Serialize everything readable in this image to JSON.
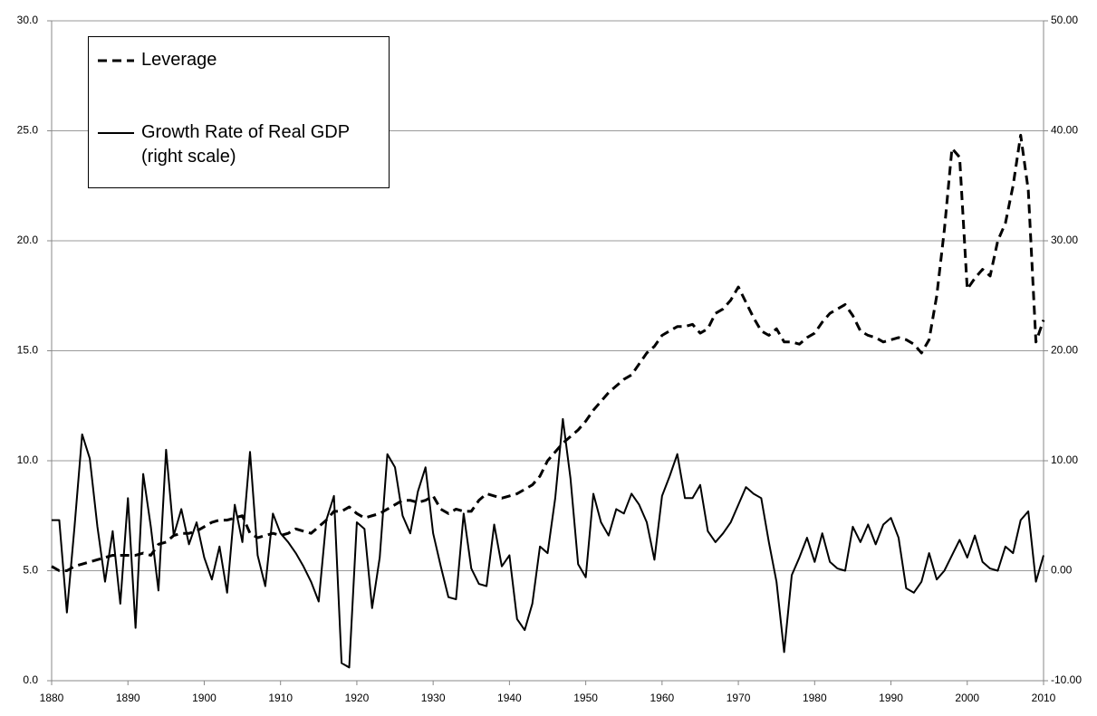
{
  "chart_data": {
    "type": "line",
    "x": [
      1880,
      1881,
      1882,
      1883,
      1884,
      1885,
      1886,
      1887,
      1888,
      1889,
      1890,
      1891,
      1892,
      1893,
      1894,
      1895,
      1896,
      1897,
      1898,
      1899,
      1900,
      1901,
      1902,
      1903,
      1904,
      1905,
      1906,
      1907,
      1908,
      1909,
      1910,
      1911,
      1912,
      1913,
      1914,
      1915,
      1916,
      1917,
      1918,
      1919,
      1920,
      1921,
      1922,
      1923,
      1924,
      1925,
      1926,
      1927,
      1928,
      1929,
      1930,
      1931,
      1932,
      1933,
      1934,
      1935,
      1936,
      1937,
      1938,
      1939,
      1940,
      1941,
      1942,
      1943,
      1944,
      1945,
      1946,
      1947,
      1948,
      1949,
      1950,
      1951,
      1952,
      1953,
      1954,
      1955,
      1956,
      1957,
      1958,
      1959,
      1960,
      1961,
      1962,
      1963,
      1964,
      1965,
      1966,
      1967,
      1968,
      1969,
      1970,
      1971,
      1972,
      1973,
      1974,
      1975,
      1976,
      1977,
      1978,
      1979,
      1980,
      1981,
      1982,
      1983,
      1984,
      1985,
      1986,
      1987,
      1988,
      1989,
      1990,
      1991,
      1992,
      1993,
      1994,
      1995,
      1996,
      1997,
      1998,
      1999,
      2000,
      2001,
      2002,
      2003,
      2004,
      2005,
      2006,
      2007,
      2008,
      2009,
      2010
    ],
    "series": [
      {
        "name": "Leverage",
        "color": "#000000",
        "style": "dashed",
        "values": [
          5.2,
          5.0,
          5.0,
          5.2,
          5.3,
          5.4,
          5.5,
          5.6,
          5.7,
          5.7,
          5.7,
          5.7,
          5.8,
          5.7,
          6.2,
          6.3,
          6.6,
          6.7,
          6.7,
          6.8,
          7.0,
          7.2,
          7.3,
          7.3,
          7.4,
          7.5,
          6.7,
          6.5,
          6.6,
          6.7,
          6.6,
          6.7,
          6.9,
          6.8,
          6.7,
          7.0,
          7.3,
          7.7,
          7.7,
          7.9,
          7.6,
          7.4,
          7.5,
          7.6,
          7.8,
          8.0,
          8.2,
          8.2,
          8.1,
          8.2,
          8.4,
          7.8,
          7.6,
          7.8,
          7.7,
          7.7,
          8.2,
          8.5,
          8.4,
          8.3,
          8.4,
          8.5,
          8.7,
          8.9,
          9.3,
          10.0,
          10.4,
          10.8,
          11.1,
          11.4,
          11.8,
          12.3,
          12.7,
          13.1,
          13.4,
          13.7,
          13.9,
          14.4,
          14.9,
          15.2,
          15.7,
          15.9,
          16.1,
          16.1,
          16.2,
          15.8,
          16.0,
          16.7,
          16.9,
          17.3,
          17.9,
          17.2,
          16.5,
          15.9,
          15.7,
          16.0,
          15.4,
          15.4,
          15.3,
          15.6,
          15.8,
          16.3,
          16.7,
          16.9,
          17.1,
          16.6,
          15.9,
          15.7,
          15.6,
          15.4,
          15.5,
          15.6,
          15.5,
          15.3,
          14.9,
          15.5,
          17.5,
          20.5,
          24.2,
          23.8,
          17.8,
          18.3,
          18.7,
          18.4,
          20.0,
          20.8,
          22.5,
          24.8,
          22.3,
          15.4,
          16.4
        ]
      },
      {
        "name": "Growth Rate of Real GDP (right scale)",
        "color": "#000000",
        "style": "solid",
        "axis": "y2",
        "values": [
          4.6,
          4.6,
          -3.8,
          4.0,
          12.4,
          10.2,
          4.0,
          -1.0,
          3.6,
          -3.0,
          6.6,
          -5.2,
          8.8,
          4.0,
          -1.8,
          11.0,
          3.2,
          5.6,
          2.4,
          4.4,
          1.2,
          -0.8,
          2.2,
          -2.0,
          6.0,
          2.6,
          10.8,
          1.4,
          -1.4,
          5.2,
          3.4,
          2.6,
          1.6,
          0.4,
          -1.0,
          -2.8,
          4.6,
          6.8,
          -8.4,
          -8.8,
          4.4,
          3.8,
          -3.4,
          1.2,
          10.6,
          9.4,
          5.0,
          3.4,
          7.2,
          9.4,
          3.4,
          0.4,
          -2.4,
          -2.6,
          5.2,
          0.2,
          -1.2,
          -1.4,
          4.2,
          0.4,
          1.4,
          -4.4,
          -5.4,
          -3.0,
          2.2,
          1.6,
          6.6,
          13.8,
          8.4,
          0.6,
          -0.6,
          7.0,
          4.4,
          3.2,
          5.6,
          5.2,
          7.0,
          6.0,
          4.4,
          1.0,
          6.8,
          8.6,
          10.6,
          6.6,
          6.6,
          7.8,
          3.6,
          2.6,
          3.4,
          4.4,
          6.0,
          7.6,
          7.0,
          6.6,
          2.6,
          -1.0,
          -7.4,
          -0.4,
          1.2,
          3.0,
          0.8,
          3.4,
          0.8,
          0.2,
          0.0,
          4.0,
          2.6,
          4.2,
          2.4,
          4.2,
          4.8,
          3.0,
          -1.6,
          -2.0,
          -1.0,
          1.6,
          -0.8,
          0.0,
          1.4,
          2.8,
          1.2,
          3.2,
          0.8,
          0.2,
          0.0,
          2.2,
          1.6,
          4.6,
          5.4,
          -1.0,
          1.4
        ]
      }
    ],
    "xlim": [
      1880,
      2010
    ],
    "xticks": [
      1880,
      1890,
      1900,
      1910,
      1920,
      1930,
      1940,
      1950,
      1960,
      1970,
      1980,
      1990,
      2000,
      2010
    ],
    "ylim": [
      0,
      30
    ],
    "yticks": [
      {
        "value": 0,
        "label": "0.0"
      },
      {
        "value": 5,
        "label": "5.0"
      },
      {
        "value": 10,
        "label": "10.0"
      },
      {
        "value": 15,
        "label": "15.0"
      },
      {
        "value": 20,
        "label": "20.0"
      },
      {
        "value": 25,
        "label": "25.0"
      },
      {
        "value": 30,
        "label": "30.0"
      }
    ],
    "y2lim": [
      -10,
      50
    ],
    "y2ticks": [
      {
        "value": -10,
        "label": "-10.00"
      },
      {
        "value": 0,
        "label": "0.00"
      },
      {
        "value": 10,
        "label": "10.00"
      },
      {
        "value": 20,
        "label": "20.00"
      },
      {
        "value": 30,
        "label": "30.00"
      },
      {
        "value": 40,
        "label": "40.00"
      },
      {
        "value": 50,
        "label": "50.00"
      }
    ],
    "grid": true,
    "legend": "upper left"
  }
}
